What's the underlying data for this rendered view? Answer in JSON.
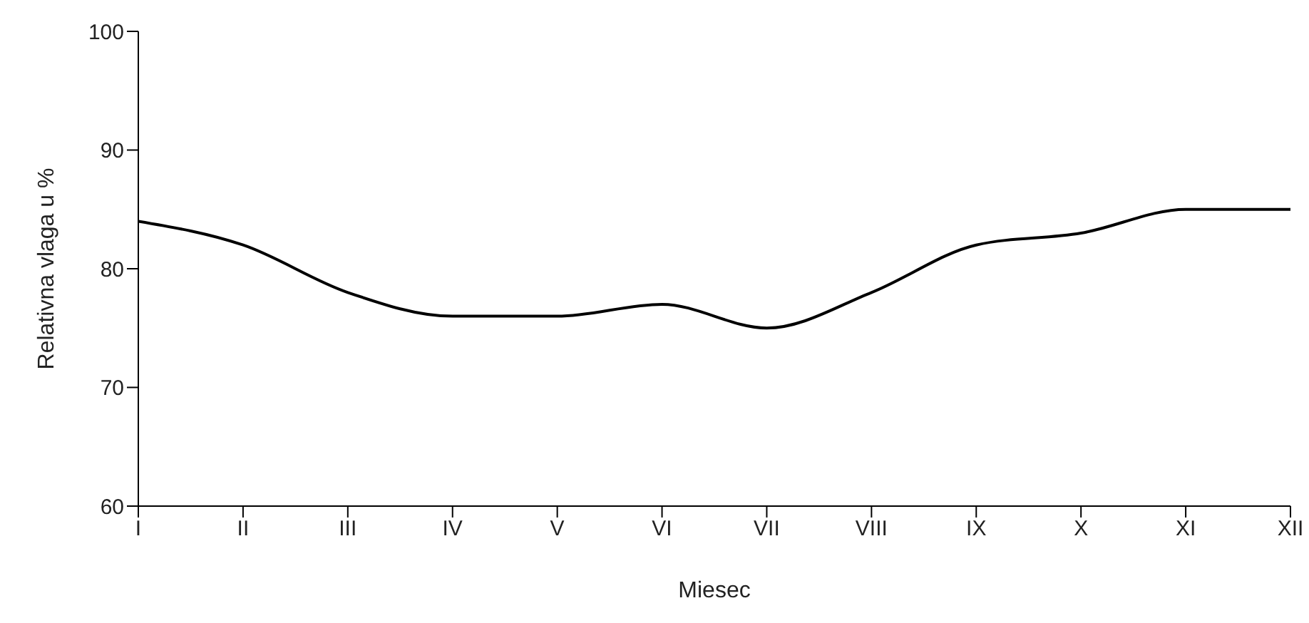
{
  "chart_data": {
    "type": "line",
    "xlabel": "Miesec",
    "ylabel": "Relativna vlaga u %",
    "categories": [
      "I",
      "II",
      "III",
      "IV",
      "V",
      "VI",
      "VII",
      "VIII",
      "IX",
      "X",
      "XI",
      "XII"
    ],
    "series": [
      {
        "color": "#000000",
        "values": [
          84,
          82,
          78,
          76,
          76,
          77,
          75,
          78,
          82,
          83,
          85,
          85
        ]
      }
    ],
    "ylim": [
      60,
      100
    ],
    "yticks": [
      60,
      70,
      80,
      90,
      100
    ],
    "grid": false,
    "legend": false,
    "marker": "none",
    "line_style": "solid"
  }
}
